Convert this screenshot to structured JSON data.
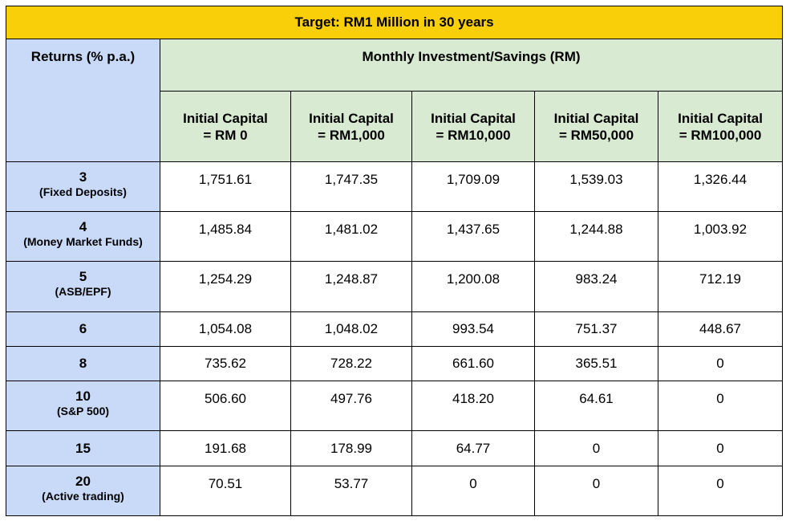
{
  "title": "Target: RM1 Million in 30 years",
  "returns_header": "Returns (% p.a.)",
  "monthly_header": "Monthly Investment/Savings (RM)",
  "capital_headers": [
    {
      "line1": "Initial Capital",
      "line2": "= RM 0"
    },
    {
      "line1": "Initial Capital",
      "line2": "= RM1,000"
    },
    {
      "line1": "Initial Capital",
      "line2": "= RM10,000"
    },
    {
      "line1": "Initial Capital",
      "line2": "= RM50,000"
    },
    {
      "line1": "Initial Capital",
      "line2": "= RM100,000"
    }
  ],
  "rows": [
    {
      "rate": "3",
      "note": "(Fixed Deposits)",
      "values": [
        "1,751.61",
        "1,747.35",
        "1,709.09",
        "1,539.03",
        "1,326.44"
      ]
    },
    {
      "rate": "4",
      "note": "(Money Market Funds)",
      "values": [
        "1,485.84",
        "1,481.02",
        "1,437.65",
        "1,244.88",
        "1,003.92"
      ]
    },
    {
      "rate": "5",
      "note": "(ASB/EPF)",
      "values": [
        "1,254.29",
        "1,248.87",
        "1,200.08",
        "983.24",
        "712.19"
      ]
    },
    {
      "rate": "6",
      "note": "",
      "values": [
        "1,054.08",
        "1,048.02",
        "993.54",
        "751.37",
        "448.67"
      ]
    },
    {
      "rate": "8",
      "note": "",
      "values": [
        "735.62",
        "728.22",
        "661.60",
        "365.51",
        "0"
      ]
    },
    {
      "rate": "10",
      "note": "(S&P 500)",
      "values": [
        "506.60",
        "497.76",
        "418.20",
        "64.61",
        "0"
      ]
    },
    {
      "rate": "15",
      "note": "",
      "values": [
        "191.68",
        "178.99",
        "64.77",
        "0",
        "0"
      ]
    },
    {
      "rate": "20",
      "note": "(Active trading)",
      "values": [
        "70.51",
        "53.77",
        "0",
        "0",
        "0"
      ]
    }
  ]
}
